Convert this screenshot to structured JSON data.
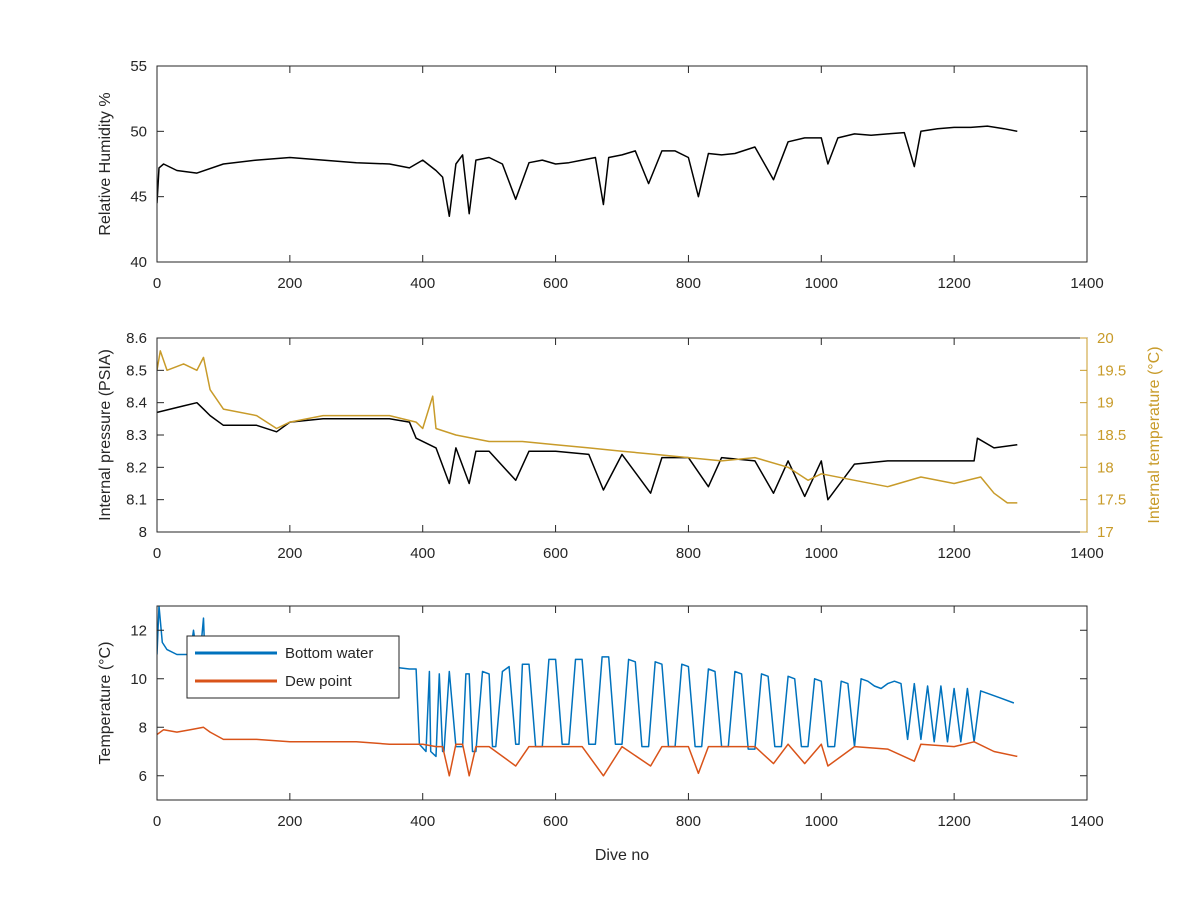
{
  "chart_data": [
    {
      "type": "line",
      "xlabel": "",
      "ylabel": "Relative Humidity %",
      "xlim": [
        0,
        1400
      ],
      "ylim": [
        40,
        55
      ],
      "xticks": [
        0,
        200,
        400,
        600,
        800,
        1000,
        1200,
        1400
      ],
      "yticks": [
        40,
        45,
        50,
        55
      ],
      "grid": false,
      "series": [
        {
          "color": "#000000",
          "x": [
            0,
            3,
            10,
            30,
            60,
            100,
            150,
            200,
            250,
            300,
            350,
            380,
            400,
            420,
            430,
            440,
            450,
            460,
            470,
            480,
            500,
            520,
            540,
            560,
            580,
            600,
            620,
            640,
            660,
            672,
            680,
            700,
            720,
            740,
            760,
            780,
            800,
            815,
            830,
            850,
            870,
            900,
            928,
            950,
            975,
            1000,
            1010,
            1025,
            1050,
            1075,
            1100,
            1125,
            1140,
            1150,
            1175,
            1200,
            1225,
            1250,
            1275,
            1295
          ],
          "values": [
            44.5,
            47.2,
            47.5,
            47.0,
            46.8,
            47.5,
            47.8,
            48.0,
            47.8,
            47.6,
            47.5,
            47.2,
            47.8,
            47.0,
            46.5,
            43.5,
            47.5,
            48.2,
            43.7,
            47.8,
            48.0,
            47.5,
            44.8,
            47.6,
            47.8,
            47.5,
            47.6,
            47.8,
            48.0,
            44.4,
            48.0,
            48.2,
            48.5,
            46.0,
            48.5,
            48.5,
            48.0,
            45.0,
            48.3,
            48.2,
            48.3,
            48.8,
            46.3,
            49.2,
            49.5,
            49.5,
            47.5,
            49.5,
            49.8,
            49.7,
            49.8,
            49.9,
            47.3,
            50.0,
            50.2,
            50.3,
            50.3,
            50.4,
            50.2,
            50.0
          ]
        }
      ]
    },
    {
      "type": "line",
      "xlabel": "",
      "ylabel": "Internal pressure (PSIA)",
      "ylabel_right": "Internal temperature (°C)",
      "xlim": [
        0,
        1400
      ],
      "ylim": [
        8,
        8.6
      ],
      "ylim_right": [
        17,
        20
      ],
      "xticks": [
        0,
        200,
        400,
        600,
        800,
        1000,
        1200,
        1400
      ],
      "yticks": [
        8,
        8.1,
        8.2,
        8.3,
        8.4,
        8.5,
        8.6
      ],
      "yticks_right": [
        17,
        17.5,
        18,
        18.5,
        19,
        19.5,
        20
      ],
      "yticklabels_right": [
        "17",
        "17.5",
        "18",
        "18.5",
        "19",
        "19.5",
        "20"
      ],
      "grid": false,
      "series": [
        {
          "color": "#000000",
          "axis": "left",
          "x": [
            0,
            20,
            40,
            60,
            70,
            80,
            100,
            150,
            180,
            200,
            250,
            300,
            350,
            380,
            390,
            420,
            440,
            450,
            470,
            480,
            500,
            540,
            560,
            600,
            650,
            672,
            700,
            743,
            760,
            800,
            830,
            850,
            900,
            928,
            950,
            975,
            1000,
            1010,
            1050,
            1100,
            1150,
            1200,
            1230,
            1235,
            1260,
            1295
          ],
          "values": [
            8.37,
            8.38,
            8.39,
            8.4,
            8.38,
            8.36,
            8.33,
            8.33,
            8.31,
            8.34,
            8.35,
            8.35,
            8.35,
            8.34,
            8.29,
            8.26,
            8.15,
            8.26,
            8.15,
            8.25,
            8.25,
            8.16,
            8.25,
            8.25,
            8.24,
            8.13,
            8.24,
            8.12,
            8.23,
            8.23,
            8.14,
            8.23,
            8.22,
            8.12,
            8.22,
            8.11,
            8.22,
            8.1,
            8.21,
            8.22,
            8.22,
            8.22,
            8.22,
            8.29,
            8.26,
            8.27
          ]
        },
        {
          "color": "#C89B2A",
          "axis": "right",
          "x": [
            0,
            5,
            15,
            40,
            60,
            70,
            80,
            100,
            150,
            180,
            200,
            250,
            300,
            350,
            390,
            400,
            415,
            420,
            450,
            500,
            550,
            600,
            650,
            700,
            750,
            800,
            850,
            900,
            950,
            980,
            1000,
            1050,
            1100,
            1150,
            1200,
            1240,
            1260,
            1280,
            1295
          ],
          "values": [
            19.5,
            19.8,
            19.5,
            19.6,
            19.5,
            19.7,
            19.2,
            18.9,
            18.8,
            18.6,
            18.7,
            18.8,
            18.8,
            18.8,
            18.7,
            18.6,
            19.1,
            18.6,
            18.5,
            18.4,
            18.4,
            18.35,
            18.3,
            18.25,
            18.2,
            18.15,
            18.1,
            18.15,
            18.0,
            17.8,
            17.9,
            17.8,
            17.7,
            17.85,
            17.75,
            17.85,
            17.6,
            17.45,
            17.45
          ]
        }
      ]
    },
    {
      "type": "line",
      "xlabel": "Dive no",
      "ylabel": "Temperature (°C)",
      "xlim": [
        0,
        1400
      ],
      "ylim": [
        5,
        13
      ],
      "xticks": [
        0,
        200,
        400,
        600,
        800,
        1000,
        1200,
        1400
      ],
      "yticks": [
        6,
        8,
        10,
        12
      ],
      "grid": false,
      "legend": "top-left",
      "series": [
        {
          "name": "Bottom water",
          "color": "#0072BD",
          "x": [
            0,
            3,
            8,
            15,
            30,
            50,
            55,
            60,
            65,
            70,
            72,
            80,
            100,
            150,
            200,
            250,
            300,
            350,
            380,
            390,
            395,
            405,
            410,
            412,
            420,
            425,
            430,
            432,
            440,
            450,
            460,
            465,
            470,
            475,
            480,
            490,
            500,
            505,
            510,
            520,
            530,
            540,
            545,
            550,
            560,
            570,
            580,
            590,
            600,
            610,
            620,
            630,
            640,
            650,
            660,
            670,
            680,
            690,
            700,
            710,
            720,
            730,
            740,
            750,
            760,
            770,
            780,
            790,
            800,
            810,
            820,
            830,
            840,
            850,
            860,
            870,
            880,
            890,
            900,
            910,
            920,
            930,
            940,
            950,
            960,
            970,
            980,
            990,
            1000,
            1010,
            1020,
            1030,
            1040,
            1050,
            1060,
            1070,
            1080,
            1090,
            1100,
            1110,
            1120,
            1130,
            1140,
            1150,
            1160,
            1170,
            1180,
            1190,
            1200,
            1210,
            1220,
            1230,
            1240,
            1250,
            1270,
            1290
          ],
          "values": [
            11.0,
            13.0,
            11.5,
            11.2,
            11.0,
            11.0,
            12.0,
            11.0,
            11.0,
            12.5,
            11.0,
            10.8,
            10.7,
            10.7,
            10.6,
            10.6,
            10.6,
            10.5,
            10.4,
            10.4,
            7.3,
            7.0,
            10.3,
            7.0,
            6.8,
            10.2,
            7.0,
            7.0,
            10.3,
            7.2,
            7.2,
            10.2,
            10.2,
            7.0,
            7.0,
            10.3,
            10.2,
            7.2,
            7.2,
            10.3,
            10.5,
            7.3,
            7.3,
            10.6,
            10.6,
            7.2,
            7.2,
            10.8,
            10.8,
            7.3,
            7.3,
            10.8,
            10.8,
            7.3,
            7.3,
            10.9,
            10.9,
            7.3,
            7.3,
            10.8,
            10.7,
            7.2,
            7.2,
            10.7,
            10.6,
            7.2,
            7.2,
            10.6,
            10.5,
            7.2,
            7.2,
            10.4,
            10.3,
            7.2,
            7.2,
            10.3,
            10.2,
            7.1,
            7.1,
            10.2,
            10.1,
            7.2,
            7.2,
            10.1,
            10.0,
            7.2,
            7.2,
            10.0,
            9.9,
            7.2,
            7.2,
            9.9,
            9.8,
            7.2,
            10.0,
            9.9,
            9.7,
            9.6,
            9.8,
            9.9,
            9.8,
            7.5,
            9.8,
            7.5,
            9.7,
            7.4,
            9.7,
            7.4,
            9.6,
            7.4,
            9.6,
            7.4,
            9.5,
            9.4,
            9.2,
            9.0
          ]
        },
        {
          "name": "Dew point",
          "color": "#D95319",
          "x": [
            0,
            10,
            30,
            50,
            70,
            80,
            100,
            150,
            200,
            250,
            300,
            350,
            380,
            400,
            420,
            430,
            440,
            450,
            460,
            470,
            480,
            500,
            540,
            560,
            600,
            640,
            672,
            700,
            743,
            760,
            800,
            815,
            830,
            850,
            900,
            928,
            950,
            975,
            1000,
            1010,
            1050,
            1100,
            1140,
            1150,
            1200,
            1230,
            1260,
            1295
          ],
          "values": [
            7.7,
            7.9,
            7.8,
            7.9,
            8.0,
            7.8,
            7.5,
            7.5,
            7.4,
            7.4,
            7.4,
            7.3,
            7.3,
            7.3,
            7.2,
            7.2,
            6.0,
            7.3,
            7.3,
            6.0,
            7.2,
            7.2,
            6.4,
            7.2,
            7.2,
            7.2,
            6.0,
            7.2,
            6.4,
            7.2,
            7.2,
            6.1,
            7.2,
            7.2,
            7.2,
            6.5,
            7.3,
            6.5,
            7.3,
            6.4,
            7.2,
            7.1,
            6.6,
            7.3,
            7.2,
            7.4,
            7.0,
            6.8
          ]
        }
      ]
    }
  ]
}
